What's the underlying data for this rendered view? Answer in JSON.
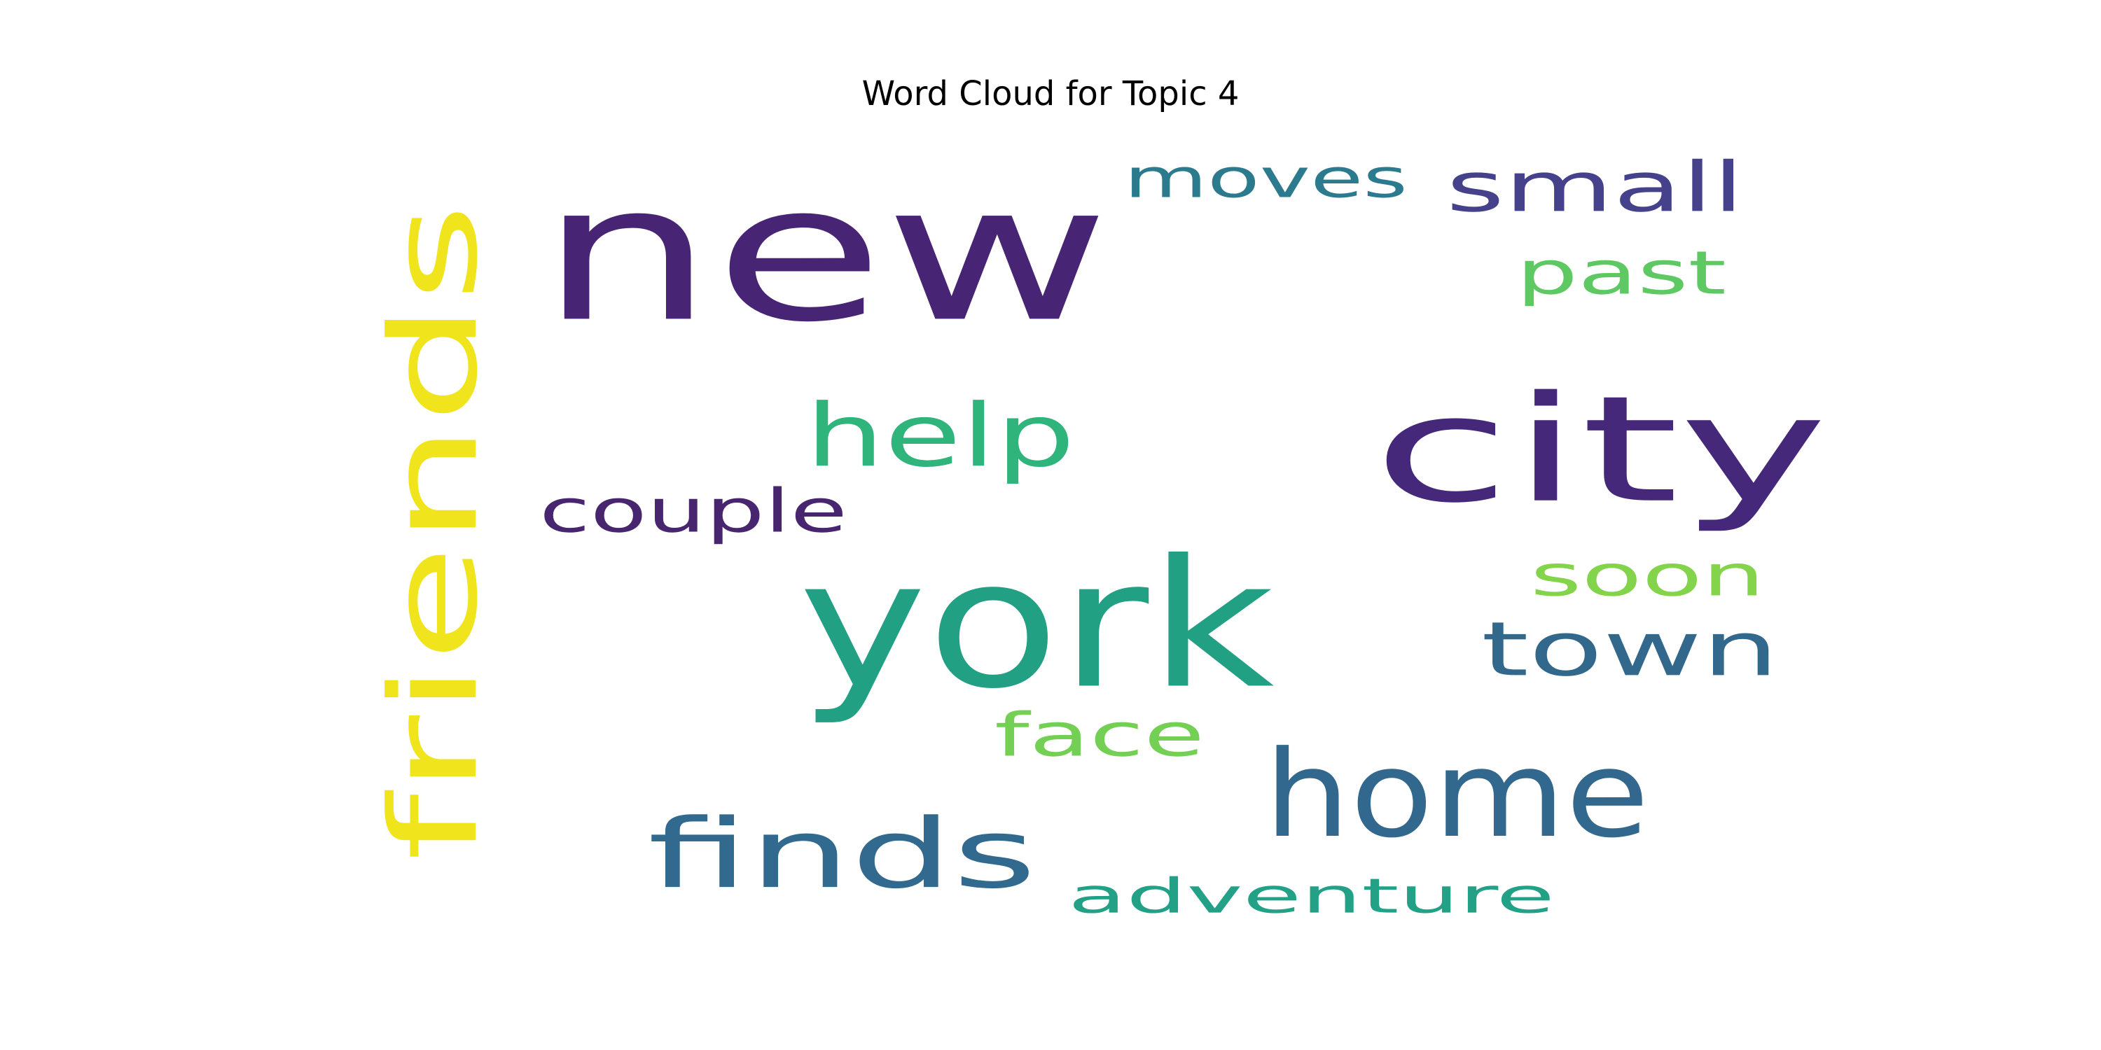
{
  "chart_data": {
    "type": "wordcloud",
    "title": "Word Cloud for Topic 4",
    "words": [
      {
        "text": "new",
        "color": "#482475"
      },
      {
        "text": "city",
        "color": "#46287a"
      },
      {
        "text": "york",
        "color": "#22a084"
      },
      {
        "text": "friends",
        "color": "#f0e51d"
      },
      {
        "text": "home",
        "color": "#32688e"
      },
      {
        "text": "finds",
        "color": "#32698e"
      },
      {
        "text": "town",
        "color": "#33688d"
      },
      {
        "text": "help",
        "color": "#2fb47c"
      },
      {
        "text": "small",
        "color": "#45418a"
      },
      {
        "text": "moves",
        "color": "#2b7a8e"
      },
      {
        "text": "couple",
        "color": "#47256f"
      },
      {
        "text": "soon",
        "color": "#84d44b"
      },
      {
        "text": "past",
        "color": "#5ec962"
      },
      {
        "text": "face",
        "color": "#74d055"
      },
      {
        "text": "adventure",
        "color": "#22a186"
      }
    ]
  }
}
